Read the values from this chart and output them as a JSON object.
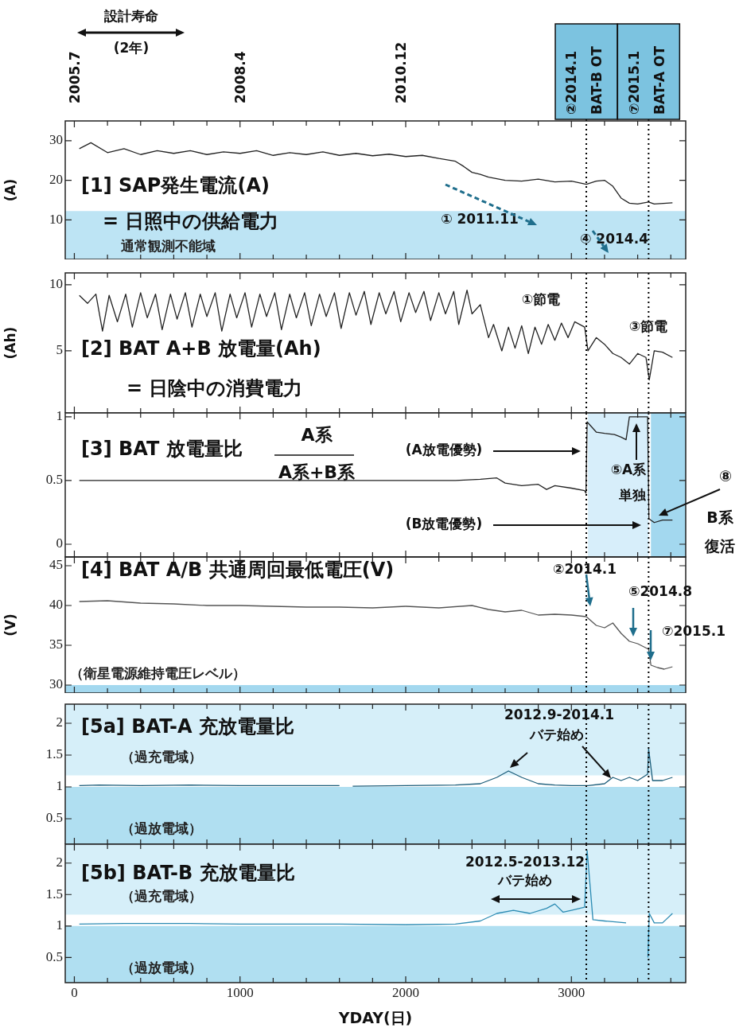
{
  "chart_data": [
    {
      "type": "line",
      "title": "[1] SAP発生電流(A)",
      "subtitle": "= 日照中の供給電力",
      "ylabel": "(A)",
      "xlim": [
        -55,
        3690
      ],
      "ylim": [
        0,
        35
      ],
      "yticks": [
        10,
        20,
        30
      ],
      "tick_labels": "y",
      "xticks": [
        0,
        {
          "value": 200,
          "label": null
        },
        {
          "value": 400,
          "label": null
        },
        {
          "value": 600,
          "label": null
        },
        {
          "value": 800,
          "label": null
        },
        1000,
        {
          "value": 1200,
          "label": null
        },
        {
          "value": 1400,
          "label": null
        },
        {
          "value": 1600,
          "label": null
        },
        {
          "value": 1800,
          "label": null
        },
        2000,
        {
          "value": 2200,
          "label": null
        },
        {
          "value": 2400,
          "label": null
        },
        {
          "value": 2600,
          "label": null
        },
        {
          "value": 2800,
          "label": null
        },
        3000,
        {
          "value": 3200,
          "label": null
        },
        {
          "value": 3400,
          "label": null
        },
        {
          "value": 3600,
          "label": null
        }
      ],
      "x2lim": [
        "2005-05-06",
        "2015-08-26"
      ],
      "x2ticks": [
        {
          "value": "2005-07",
          "label": "2005.7"
        },
        {
          "value": "2008-04",
          "label": "2008.4"
        },
        {
          "value": "2010-12",
          "label": "2010.12"
        }
      ],
      "series": [
        {
          "color": "#222222",
          "x": [
            30,
            100,
            200,
            300,
            400,
            500,
            600,
            700,
            800,
            900,
            1000,
            1100,
            1200,
            1300,
            1400,
            1500,
            1600,
            1700,
            1800,
            1900,
            2000,
            2100,
            2200,
            2300,
            2350,
            2400,
            2450,
            2500,
            2600,
            2700,
            2800,
            2900,
            3000,
            3090,
            3150,
            3200,
            3250,
            3300,
            3350,
            3400,
            3466,
            3500,
            3610
          ],
          "values": [
            28,
            29.5,
            27,
            28,
            26.5,
            27.5,
            26.8,
            27.5,
            26.5,
            27.2,
            26.8,
            27.5,
            26.3,
            27,
            26.5,
            27.2,
            26.3,
            26.8,
            26.2,
            26.6,
            26,
            26.3,
            25.5,
            24.8,
            23.5,
            22,
            21.5,
            20.8,
            20,
            19.8,
            20.3,
            19.6,
            19.8,
            19,
            19.8,
            20,
            18.5,
            15.5,
            14.2,
            14,
            14.5,
            14,
            14.3
          ]
        }
      ],
      "bands": [
        {
          "axis": "y",
          "from": 0,
          "to": 12.2,
          "label": "通常観測不能域",
          "color": "#bde4f4"
        }
      ],
      "ref_lines": [
        {
          "axis": "x",
          "value": 3090,
          "label": "②2014.1 BAT-B OT",
          "line_style": "dotted",
          "color": "#000000"
        },
        {
          "axis": "x",
          "value": 3466,
          "label": "⑦2015.1 BAT-A OT",
          "line_style": "dotted",
          "color": "#000000"
        }
      ],
      "annotations": [
        "設計寿命 (2年)",
        "① 2011.11",
        "④ 2014.4"
      ]
    },
    {
      "type": "line",
      "title": "[2] BAT A+B 放電量(Ah)",
      "subtitle": "= 日陰中の消費電力",
      "ylabel": "(Ah)",
      "xlim": [
        -55,
        3690
      ],
      "ylim": [
        0.3,
        10.9
      ],
      "yticks": [
        5,
        10
      ],
      "tick_labels": "y",
      "xticks": [
        0,
        {
          "value": 200,
          "label": null
        },
        {
          "value": 400,
          "label": null
        },
        {
          "value": 600,
          "label": null
        },
        {
          "value": 800,
          "label": null
        },
        1000,
        {
          "value": 1200,
          "label": null
        },
        {
          "value": 1400,
          "label": null
        },
        {
          "value": 1600,
          "label": null
        },
        {
          "value": 1800,
          "label": null
        },
        2000,
        {
          "value": 2200,
          "label": null
        },
        {
          "value": 2400,
          "label": null
        },
        {
          "value": 2600,
          "label": null
        },
        {
          "value": 2800,
          "label": null
        },
        3000,
        {
          "value": 3200,
          "label": null
        },
        {
          "value": 3400,
          "label": null
        },
        {
          "value": 3600,
          "label": null
        }
      ],
      "series": [
        {
          "color": "#222222",
          "x": [
            30,
            80,
            130,
            170,
            210,
            260,
            310,
            350,
            400,
            440,
            490,
            530,
            580,
            620,
            670,
            710,
            760,
            800,
            850,
            890,
            940,
            980,
            1030,
            1070,
            1120,
            1160,
            1210,
            1250,
            1300,
            1340,
            1390,
            1430,
            1480,
            1520,
            1570,
            1610,
            1660,
            1700,
            1750,
            1790,
            1840,
            1880,
            1930,
            1970,
            2020,
            2060,
            2110,
            2150,
            2200,
            2240,
            2290,
            2320,
            2370,
            2400,
            2450,
            2500,
            2530,
            2580,
            2620,
            2660,
            2700,
            2740,
            2780,
            2820,
            2860,
            2900,
            2940,
            2980,
            3020,
            3080,
            3100,
            3150,
            3200,
            3250,
            3300,
            3350,
            3400,
            3450,
            3470,
            3500,
            3550,
            3610
          ],
          "values": [
            9.2,
            8.6,
            9.3,
            6.5,
            9.2,
            7.2,
            9.3,
            6.8,
            9.4,
            7.5,
            9.3,
            6.6,
            9.3,
            7.4,
            9.4,
            6.8,
            9.3,
            7.6,
            9.4,
            6.5,
            9.3,
            7.5,
            9.4,
            6.8,
            9.3,
            7.6,
            9.4,
            6.6,
            9.3,
            7.5,
            9.4,
            6.9,
            9.3,
            7.6,
            9.4,
            6.7,
            9.4,
            7.7,
            9.5,
            7,
            9.4,
            7.8,
            9.5,
            7.2,
            9.4,
            7.9,
            9.5,
            7.3,
            9.4,
            7.8,
            9.5,
            7,
            9.6,
            7.8,
            8.5,
            6,
            7,
            5,
            6.8,
            5.2,
            6.9,
            4.8,
            6.8,
            5.5,
            7,
            5.8,
            7.1,
            6,
            7.2,
            6.8,
            5,
            6,
            5.5,
            4.8,
            4.5,
            4,
            4.8,
            4.5,
            2.8,
            5,
            4.9,
            4.5
          ]
        }
      ],
      "ref_lines": [
        {
          "axis": "x",
          "value": 3090,
          "line_style": "dotted",
          "color": "#000000"
        },
        {
          "axis": "x",
          "value": 3466,
          "line_style": "dotted",
          "color": "#000000"
        }
      ],
      "annotations": [
        "①節電",
        "③節電"
      ]
    },
    {
      "type": "line",
      "title": "[3] BAT 放電量比",
      "xlim": [
        -55,
        3690
      ],
      "ylim": [
        -0.1,
        1.03
      ],
      "yticks": [
        0,
        0.5,
        1
      ],
      "tick_labels": "y",
      "xticks": [
        0,
        {
          "value": 200,
          "label": null
        },
        {
          "value": 400,
          "label": null
        },
        {
          "value": 600,
          "label": null
        },
        {
          "value": 800,
          "label": null
        },
        1000,
        {
          "value": 1200,
          "label": null
        },
        {
          "value": 1400,
          "label": null
        },
        {
          "value": 1600,
          "label": null
        },
        {
          "value": 1800,
          "label": null
        },
        2000,
        {
          "value": 2200,
          "label": null
        },
        {
          "value": 2400,
          "label": null
        },
        {
          "value": 2600,
          "label": null
        },
        {
          "value": 2800,
          "label": null
        },
        3000,
        {
          "value": 3200,
          "label": null
        },
        {
          "value": 3400,
          "label": null
        },
        {
          "value": 3600,
          "label": null
        }
      ],
      "series": [
        {
          "color": "#222222",
          "x": [
            30,
            500,
            1000,
            1500,
            2000,
            2300,
            2450,
            2550,
            2600,
            2700,
            2800,
            2850,
            2900,
            3000,
            3080,
            3088,
            3095,
            3150,
            3200,
            3260,
            3300,
            3330,
            3350,
            3460,
            3468,
            3500,
            3550,
            3610
          ],
          "values": [
            0.5,
            0.5,
            0.5,
            0.5,
            0.5,
            0.5,
            0.51,
            0.52,
            0.48,
            0.46,
            0.47,
            0.43,
            0.46,
            0.44,
            0.42,
            0.4,
            0.96,
            0.88,
            0.87,
            0.86,
            0.84,
            0.82,
            1,
            1,
            0.2,
            0.17,
            0.19,
            0.19
          ]
        }
      ],
      "bands": [
        {
          "axis": "x",
          "from": 3100,
          "to": 3466,
          "color": "#d7eefa"
        },
        {
          "axis": "x",
          "from": 3480,
          "to": 3690,
          "color": "#a3d8ef"
        }
      ],
      "ref_lines": [
        {
          "axis": "x",
          "value": 3090,
          "line_style": "dotted",
          "color": "#000000"
        },
        {
          "axis": "x",
          "value": 3466,
          "line_style": "dotted",
          "color": "#000000"
        }
      ],
      "annotations": [
        "A系",
        "A系+B系",
        "(A放電優勢)",
        "(B放電優勢)",
        "⑤A系",
        "単独",
        "⑧",
        "B系",
        "復活"
      ]
    },
    {
      "type": "line",
      "title": "[4] BAT A/B 共通周回最低電圧(V)",
      "ylabel": "(V)",
      "xlim": [
        -55,
        3690
      ],
      "ylim": [
        29,
        46.1
      ],
      "yticks": [
        30,
        35,
        40,
        45
      ],
      "tick_labels": "y",
      "xticks": [
        0,
        {
          "value": 200,
          "label": null
        },
        {
          "value": 400,
          "label": null
        },
        {
          "value": 600,
          "label": null
        },
        {
          "value": 800,
          "label": null
        },
        1000,
        {
          "value": 1200,
          "label": null
        },
        {
          "value": 1400,
          "label": null
        },
        {
          "value": 1600,
          "label": null
        },
        {
          "value": 1800,
          "label": null
        },
        2000,
        {
          "value": 2200,
          "label": null
        },
        {
          "value": 2400,
          "label": null
        },
        {
          "value": 2600,
          "label": null
        },
        {
          "value": 2800,
          "label": null
        },
        3000,
        {
          "value": 3200,
          "label": null
        },
        {
          "value": 3400,
          "label": null
        },
        {
          "value": 3600,
          "label": null
        }
      ],
      "series": [
        {
          "color": "#555555",
          "x": [
            30,
            200,
            400,
            600,
            800,
            1000,
            1200,
            1400,
            1600,
            1800,
            2000,
            2200,
            2400,
            2500,
            2600,
            2700,
            2800,
            2900,
            3000,
            3090,
            3150,
            3200,
            3250,
            3300,
            3350,
            3400,
            3466,
            3480,
            3520,
            3560,
            3610
          ],
          "values": [
            40.5,
            40.6,
            40.3,
            40.2,
            40,
            40,
            39.9,
            39.8,
            39.8,
            39.7,
            39.9,
            39.7,
            40,
            39.5,
            39.2,
            39.4,
            38.8,
            38.9,
            38.8,
            38.6,
            37.5,
            37.2,
            37.8,
            36.5,
            35.5,
            35.2,
            34.5,
            32.5,
            32.2,
            32,
            32.3
          ]
        }
      ],
      "bands": [
        {
          "axis": "y",
          "from": 29,
          "to": 30,
          "label": "（衛星電源維持電圧レベル）",
          "color": "#a3d8ef"
        }
      ],
      "ref_lines": [
        {
          "axis": "x",
          "value": 3090,
          "line_style": "dotted",
          "color": "#000000"
        },
        {
          "axis": "x",
          "value": 3466,
          "line_style": "dotted",
          "color": "#000000"
        }
      ],
      "annotations": [
        "②2014.1",
        "⑤2014.8",
        "⑦2015.1"
      ]
    },
    {
      "type": "line",
      "title": "[5a] BAT-A 充放電量比",
      "xlim": [
        -55,
        3690
      ],
      "ylim": [
        0.1,
        2.3
      ],
      "yticks": [
        0.5,
        1,
        1.5,
        2
      ],
      "tick_labels": "y",
      "xticks": [
        0,
        {
          "value": 200,
          "label": null
        },
        {
          "value": 400,
          "label": null
        },
        {
          "value": 600,
          "label": null
        },
        {
          "value": 800,
          "label": null
        },
        1000,
        {
          "value": 1200,
          "label": null
        },
        {
          "value": 1400,
          "label": null
        },
        {
          "value": 1600,
          "label": null
        },
        {
          "value": 1800,
          "label": null
        },
        2000,
        {
          "value": 2200,
          "label": null
        },
        {
          "value": 2400,
          "label": null
        },
        {
          "value": 2600,
          "label": null
        },
        {
          "value": 2800,
          "label": null
        },
        3000,
        {
          "value": 3200,
          "label": null
        },
        {
          "value": 3400,
          "label": null
        },
        {
          "value": 3600,
          "label": null
        }
      ],
      "series": [
        {
          "color": "#1b5d7a",
          "x": [
            30,
            150,
            400,
            700,
            1000,
            1300,
            1600,
            1640,
            1680,
            2000,
            2300,
            2450,
            2550,
            2620,
            2700,
            2800,
            2900,
            3000,
            3100,
            3200,
            3250,
            3300,
            3350,
            3400,
            3460,
            3466,
            3490,
            3550,
            3610
          ],
          "values": [
            1.02,
            1.03,
            1.02,
            1.03,
            1.02,
            1.02,
            1.02,
            null,
            1.01,
            1.02,
            1.03,
            1.05,
            1.15,
            1.25,
            1.15,
            1.05,
            1.03,
            1.02,
            1.02,
            1.05,
            1.15,
            1.1,
            1.15,
            1.1,
            1.2,
            1.6,
            1.1,
            1.1,
            1.15
          ]
        }
      ],
      "bands": [
        {
          "axis": "y",
          "from": 0.1,
          "to": 1,
          "label": "（過放電域）",
          "color": "#b0dff1"
        },
        {
          "axis": "y",
          "from": 1.18,
          "to": 2.3,
          "label": "（過充電域）",
          "color": "#d6eff9"
        }
      ],
      "ref_lines": [
        {
          "axis": "x",
          "value": 3090,
          "line_style": "dotted",
          "color": "#000000"
        },
        {
          "axis": "x",
          "value": 3466,
          "line_style": "dotted",
          "color": "#000000"
        }
      ],
      "annotations": [
        "2012.9-2014.1",
        "バテ始め"
      ]
    },
    {
      "type": "line",
      "title": "[5b] BAT-B 充放電量比",
      "xlabel": "YDAY(日)",
      "xlim": [
        -55,
        3690
      ],
      "ylim": [
        0.1,
        2.3
      ],
      "yticks": [
        0.5,
        1,
        1.5,
        2
      ],
      "xticks": [
        0,
        {
          "value": 200,
          "label": null
        },
        {
          "value": 400,
          "label": null
        },
        {
          "value": 600,
          "label": null
        },
        {
          "value": 800,
          "label": null
        },
        1000,
        {
          "value": 1200,
          "label": null
        },
        {
          "value": 1400,
          "label": null
        },
        {
          "value": 1600,
          "label": null
        },
        {
          "value": 1800,
          "label": null
        },
        2000,
        {
          "value": 2200,
          "label": null
        },
        {
          "value": 2400,
          "label": null
        },
        {
          "value": 2600,
          "label": null
        },
        {
          "value": 2800,
          "label": null
        },
        3000,
        {
          "value": 3200,
          "label": null
        },
        {
          "value": 3400,
          "label": null
        },
        {
          "value": 3600,
          "label": null
        }
      ],
      "series": [
        {
          "color": "#2b8bb3",
          "x": [
            30,
            300,
            700,
            1000,
            1300,
            1600,
            2000,
            2300,
            2450,
            2550,
            2650,
            2750,
            2850,
            2900,
            2950,
            3000,
            3080,
            3095,
            3130,
            3200,
            3330,
            3340,
            3455,
            3462,
            3470,
            3500,
            3550,
            3610
          ],
          "values": [
            1.03,
            1.04,
            1.04,
            1.03,
            1.03,
            1.03,
            1.02,
            1.03,
            1.08,
            1.2,
            1.25,
            1.2,
            1.28,
            1.35,
            1.22,
            1.25,
            1.3,
            2.2,
            1.1,
            1.08,
            1.05,
            null,
            null,
            0.5,
            1.2,
            1.05,
            1.05,
            1.2
          ]
        }
      ],
      "bands": [
        {
          "axis": "y",
          "from": 0.1,
          "to": 1,
          "label": "（過放電域）",
          "color": "#b0dff1"
        },
        {
          "axis": "y",
          "from": 1.18,
          "to": 2.3,
          "label": "（過充電域）",
          "color": "#d6eff9"
        }
      ],
      "ref_lines": [
        {
          "axis": "x",
          "value": 3090,
          "line_style": "dotted",
          "color": "#000000"
        },
        {
          "axis": "x",
          "value": 3466,
          "line_style": "dotted",
          "color": "#000000"
        }
      ],
      "annotations": [
        "2012.5-2013.12",
        "バテ始め"
      ]
    }
  ]
}
